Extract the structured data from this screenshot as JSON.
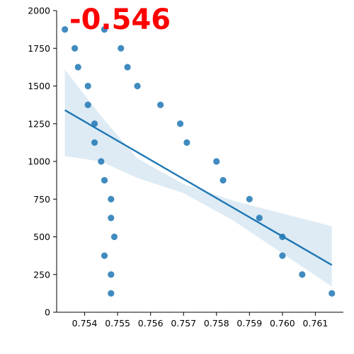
{
  "chart_data": {
    "type": "scatter",
    "title": "",
    "xlabel": "",
    "ylabel": "",
    "xlim": [
      0.75315,
      0.76185
    ],
    "ylim": [
      0,
      2000
    ],
    "x_ticks": [
      "0.754",
      "0.755",
      "0.756",
      "0.757",
      "0.758",
      "0.759",
      "0.760",
      "0.761"
    ],
    "y_ticks": [
      "0",
      "250",
      "500",
      "750",
      "1000",
      "1250",
      "1500",
      "1750",
      "2000"
    ],
    "grid": false,
    "annotation": {
      "text": "-0.546",
      "color": "#ff0000"
    },
    "series": [
      {
        "color": "#1f77b4",
        "points": [
          [
            0.7534,
            1875
          ],
          [
            0.7537,
            1750
          ],
          [
            0.7538,
            1625
          ],
          [
            0.7541,
            1500
          ],
          [
            0.7541,
            1375
          ],
          [
            0.7543,
            1250
          ],
          [
            0.7543,
            1125
          ],
          [
            0.7545,
            1000
          ],
          [
            0.7546,
            875
          ],
          [
            0.7548,
            750
          ],
          [
            0.7548,
            625
          ],
          [
            0.7549,
            500
          ],
          [
            0.7546,
            375
          ],
          [
            0.7548,
            250
          ],
          [
            0.7548,
            125
          ],
          [
            0.7546,
            1875
          ],
          [
            0.7551,
            1750
          ],
          [
            0.7553,
            1625
          ],
          [
            0.7556,
            1500
          ],
          [
            0.7563,
            1375
          ],
          [
            0.7569,
            1250
          ],
          [
            0.7571,
            1125
          ],
          [
            0.758,
            1000
          ],
          [
            0.7582,
            875
          ],
          [
            0.759,
            750
          ],
          [
            0.7593,
            625
          ],
          [
            0.76,
            500
          ],
          [
            0.76,
            375
          ],
          [
            0.7606,
            250
          ],
          [
            0.7615,
            125
          ]
        ]
      }
    ],
    "regression": {
      "x": [
        0.7534,
        0.7615
      ],
      "y": [
        1340,
        313
      ],
      "ci_upper": [
        [
          0.7534,
          1610
        ],
        [
          0.7545,
          1300
        ],
        [
          0.7556,
          1020
        ],
        [
          0.757,
          850
        ],
        [
          0.7585,
          740
        ],
        [
          0.76,
          655
        ],
        [
          0.7615,
          570
        ]
      ],
      "ci_lower": [
        [
          0.7534,
          1035
        ],
        [
          0.7545,
          1000
        ],
        [
          0.7556,
          890
        ],
        [
          0.757,
          790
        ],
        [
          0.7585,
          610
        ],
        [
          0.76,
          390
        ],
        [
          0.7615,
          170
        ]
      ]
    }
  }
}
